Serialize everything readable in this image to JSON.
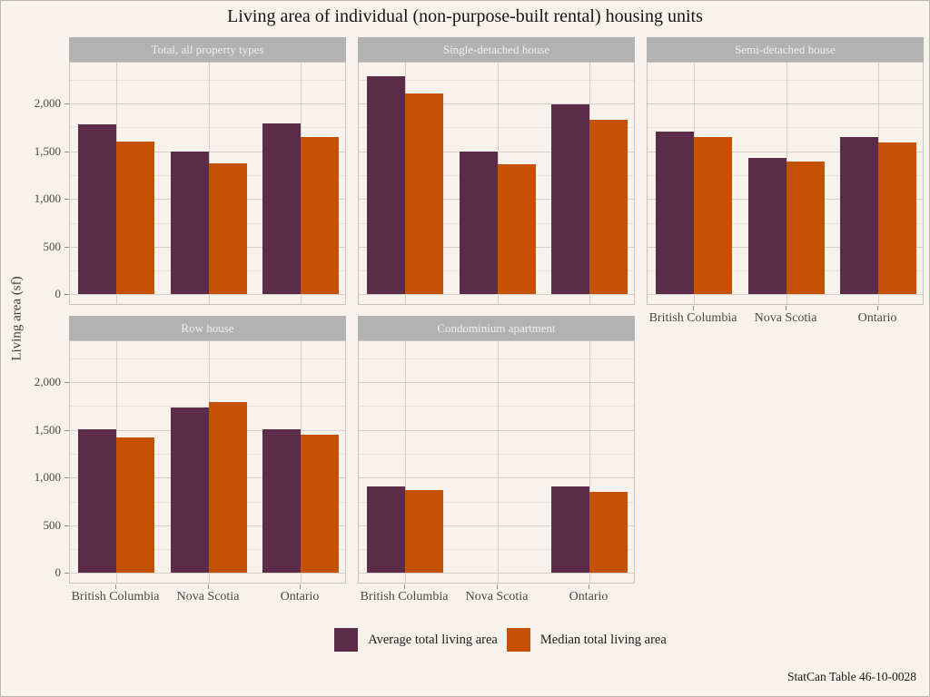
{
  "title": "Living area of individual (non-purpose-built rental) housing units",
  "ylabel": "Living area (sf)",
  "source_note": "StatCan Table 46-10-0028",
  "colors": {
    "average": "#5b2c48",
    "median": "#c55102",
    "background": "#f7f2ec",
    "strip_bg": "#b2b2b2",
    "strip_text": "#f2efeb",
    "grid_major": "#d4d0c9",
    "grid_minor": "#e7e3dc",
    "panel_border": "#c6c2bc"
  },
  "legend": [
    {
      "key": "average",
      "label": "Average total living area"
    },
    {
      "key": "median",
      "label": "Median total living area"
    }
  ],
  "chart_data": {
    "type": "bar",
    "grouped": true,
    "title": "Living area of individual (non-purpose-built rental) housing units",
    "xlabel": "",
    "ylabel": "Living area (sf)",
    "categories": [
      "British Columbia",
      "Nova Scotia",
      "Ontario"
    ],
    "series_names": [
      "Average total living area",
      "Median total living area"
    ],
    "yticks": [
      0,
      500,
      1000,
      1500,
      2000
    ],
    "minor_ticks": [
      250,
      750,
      1250,
      1750,
      2250
    ],
    "ylim": [
      0,
      2430
    ],
    "y_render_min": -100,
    "y_render_max": 2430,
    "grid": true,
    "legend_position": "bottom",
    "facets": [
      {
        "label": "Total, all property types",
        "average": [
          1780,
          1500,
          1795
        ],
        "median": [
          1600,
          1370,
          1650
        ]
      },
      {
        "label": "Single-detached house",
        "average": [
          2285,
          1500,
          1990
        ],
        "median": [
          2110,
          1365,
          1835
        ]
      },
      {
        "label": "Semi-detached house",
        "average": [
          1710,
          1430,
          1650
        ],
        "median": [
          1650,
          1390,
          1595
        ]
      },
      {
        "label": "Row house",
        "average": [
          1510,
          1740,
          1510
        ],
        "median": [
          1420,
          1790,
          1455
        ]
      },
      {
        "label": "Condominium apartment",
        "average": [
          905,
          null,
          910
        ],
        "median": [
          870,
          null,
          855
        ]
      }
    ]
  }
}
